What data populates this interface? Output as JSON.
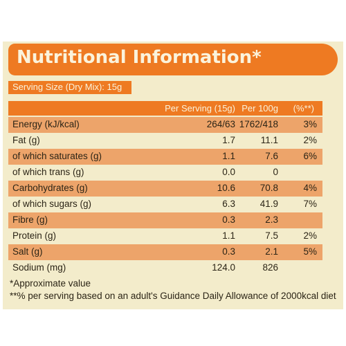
{
  "title": "Nutritional Information*",
  "serving_size": "Serving Size (Dry Mix): 15g",
  "columns": {
    "per_serving": "Per Serving (15g)",
    "per_100g": "Per 100g",
    "pct": "(%**)"
  },
  "rows": [
    {
      "name": "Energy (kJ/kcal)",
      "per_serving": "264/63",
      "per_100g": "1762/418",
      "pct": "3%"
    },
    {
      "name": "Fat (g)",
      "per_serving": "1.7",
      "per_100g": "11.1",
      "pct": "2%"
    },
    {
      "name": "of which saturates (g)",
      "per_serving": "1.1",
      "per_100g": "7.6",
      "pct": "6%"
    },
    {
      "name": "of which trans (g)",
      "per_serving": "0.0",
      "per_100g": "0",
      "pct": ""
    },
    {
      "name": "Carbohydrates (g)",
      "per_serving": "10.6",
      "per_100g": "70.8",
      "pct": "4%"
    },
    {
      "name": "of which sugars (g)",
      "per_serving": "6.3",
      "per_100g": "41.9",
      "pct": "7%"
    },
    {
      "name": "Fibre (g)",
      "per_serving": "0.3",
      "per_100g": "2.3",
      "pct": ""
    },
    {
      "name": "Protein (g)",
      "per_serving": "1.1",
      "per_100g": "7.5",
      "pct": "2%"
    },
    {
      "name": "Salt (g)",
      "per_serving": "0.3",
      "per_100g": "2.1",
      "pct": "5%"
    },
    {
      "name": "Sodium (mg)",
      "per_serving": "124.0",
      "per_100g": "826",
      "pct": ""
    }
  ],
  "footnotes": {
    "approx": "*Approximate value",
    "gda": "**% per serving based on an adult's Guidance Daily Allowance of 2000kcal diet"
  },
  "colors": {
    "accent": "#ee7a22",
    "panel": "#f3eccb",
    "row_shade": "#eda46a"
  }
}
